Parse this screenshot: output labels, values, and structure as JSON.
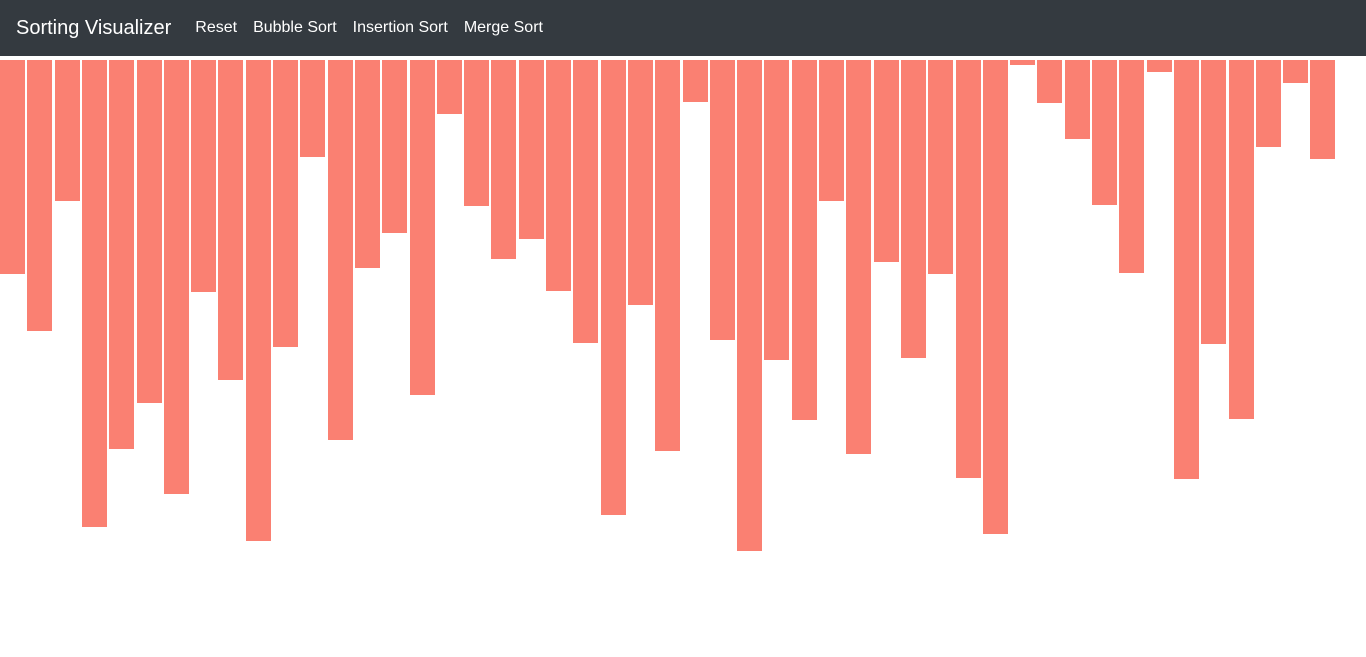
{
  "navbar": {
    "brand": "Sorting Visualizer",
    "links": [
      {
        "label": "Reset"
      },
      {
        "label": "Bubble Sort"
      },
      {
        "label": "Insertion Sort"
      },
      {
        "label": "Merge Sort"
      }
    ]
  },
  "colors": {
    "navbar_bg": "#343a40",
    "bar": "#fa8072"
  },
  "chart_data": {
    "type": "bar",
    "values": [
      214,
      271,
      141,
      467,
      389,
      343,
      434,
      232,
      320,
      481,
      287,
      97,
      380,
      208,
      173,
      335,
      54,
      146,
      199,
      179,
      231,
      283,
      455,
      245,
      391,
      42,
      280,
      491,
      300,
      360,
      141,
      394,
      202,
      298,
      214,
      418,
      474,
      5,
      43,
      79,
      145,
      213,
      12,
      419,
      284,
      359,
      87,
      23,
      99
    ]
  }
}
